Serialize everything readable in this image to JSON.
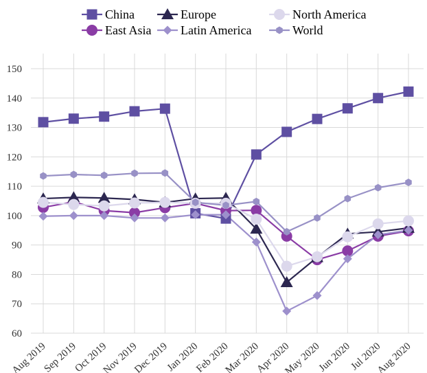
{
  "chart_data": {
    "type": "line",
    "categories": [
      "Aug 2019",
      "Sep 2019",
      "Oct 2019",
      "Nov 2019",
      "Dec 2019",
      "Jan 2020",
      "Feb 2020",
      "Mar 2020",
      "Apr 2020",
      "May 2020",
      "Jun 2020",
      "Jul 2020",
      "Aug 2020"
    ],
    "ylim": [
      60,
      150
    ],
    "yticks": [
      60,
      70,
      80,
      90,
      100,
      110,
      120,
      130,
      140,
      150
    ],
    "grid": true,
    "legend_position": "top",
    "series": [
      {
        "name": "China",
        "marker": "square",
        "color": "#5e4fa2",
        "values": [
          131.8,
          133.0,
          133.7,
          135.5,
          136.4,
          100.8,
          99.0,
          120.8,
          128.5,
          132.9,
          136.5,
          140.0,
          142.2
        ]
      },
      {
        "name": "East Asia",
        "marker": "circle",
        "color": "#8a3ca5",
        "values": [
          102.8,
          104.7,
          101.7,
          101.0,
          102.7,
          104.2,
          101.7,
          101.8,
          93.0,
          85.0,
          88.0,
          93.0,
          94.8
        ]
      },
      {
        "name": "Europe",
        "marker": "triangle",
        "color": "#2c2750",
        "values": [
          105.8,
          106.2,
          106.0,
          105.5,
          104.5,
          105.8,
          106.0,
          95.5,
          77.3,
          85.8,
          93.8,
          94.5,
          95.8
        ]
      },
      {
        "name": "Latin America",
        "marker": "diamond",
        "color": "#9d90cc",
        "values": [
          99.8,
          100.0,
          100.0,
          99.2,
          99.2,
          100.3,
          100.3,
          91.0,
          67.5,
          72.8,
          85.3,
          93.5,
          95.0
        ]
      },
      {
        "name": "North America",
        "marker": "circle",
        "color": "#dcd8ec",
        "values": [
          104.5,
          103.8,
          103.3,
          104.3,
          104.5,
          104.2,
          104.2,
          98.8,
          82.8,
          86.0,
          92.8,
          97.2,
          98.2
        ]
      },
      {
        "name": "World",
        "marker": "hexagon",
        "color": "#9891c6",
        "values": [
          113.5,
          114.0,
          113.7,
          114.4,
          114.5,
          104.5,
          103.5,
          104.8,
          94.5,
          99.2,
          105.8,
          109.5,
          111.3
        ]
      }
    ]
  }
}
